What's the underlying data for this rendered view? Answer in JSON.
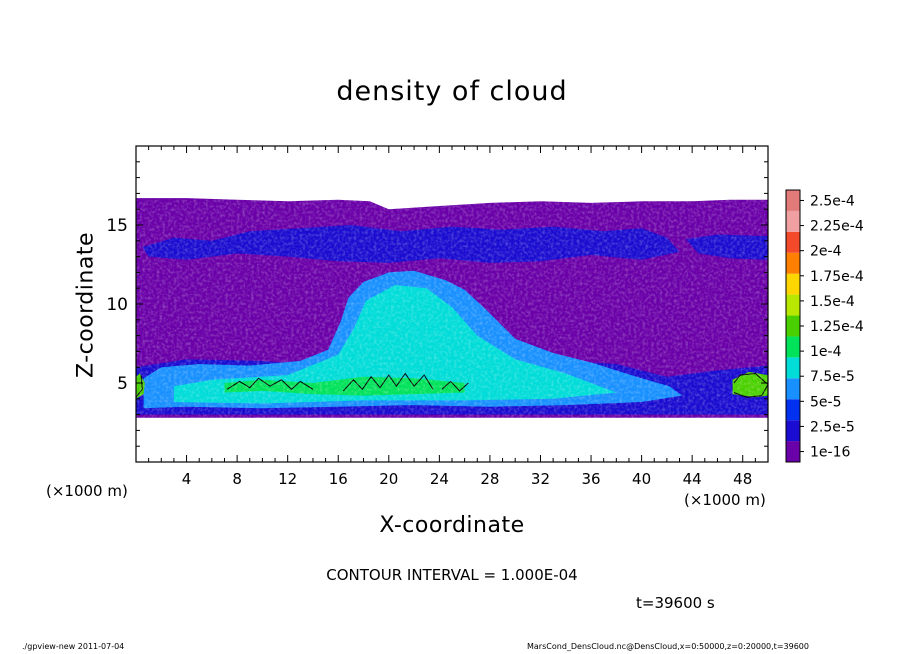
{
  "chart_data": {
    "type": "heatmap",
    "title": "density of cloud",
    "xlabel": "X-coordinate",
    "ylabel": "Z-coordinate",
    "x_unit_left": "(×1000 m)",
    "x_unit_right": "(×1000 m)",
    "xlim": [
      0,
      50
    ],
    "ylim": [
      0,
      20
    ],
    "xticks": [
      4,
      8,
      12,
      16,
      20,
      24,
      28,
      32,
      36,
      40,
      44,
      48
    ],
    "yticks": [
      5,
      10,
      15
    ],
    "colorbar": {
      "labels": [
        "2.5e-4",
        "2.25e-4",
        "2e-4",
        "1.75e-4",
        "1.5e-4",
        "1.25e-4",
        "1e-4",
        "7.5e-5",
        "5e-5",
        "2.5e-5",
        "1e-16"
      ],
      "colors": [
        "#e27a7a",
        "#f0a0a0",
        "#f24a2a",
        "#ff8000",
        "#ffd600",
        "#b8e800",
        "#4ad000",
        "#00e25a",
        "#00dcd8",
        "#1890ff",
        "#0030f0",
        "#1a0cd0",
        "#6a00a8"
      ]
    },
    "cloud_layer_base_km": 2.8,
    "cloud_layer_top_km": 16.6,
    "annotations": {
      "contour_interval": "CONTOUR INTERVAL = 1.000E-04",
      "time": "t=39600 s"
    }
  },
  "footer": {
    "left": "./gpview-new  2011-07-04",
    "right": "MarsCond_DensCloud.nc@DensCloud,x=0:50000,z=0:20000,t=39600"
  }
}
